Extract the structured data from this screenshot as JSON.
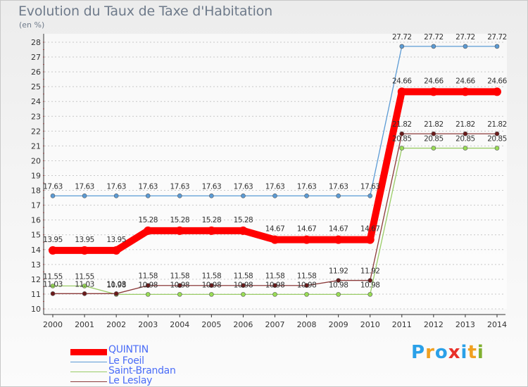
{
  "title": "Evolution du Taux de Taxe d'Habitation",
  "unit_label": "(en %)",
  "chart_data": {
    "type": "line",
    "title": "Evolution du Taux de Taxe d'Habitation",
    "ylabel": "(en %)",
    "xlabel": "",
    "x": [
      "2000",
      "2001",
      "2002",
      "2003",
      "2004",
      "2005",
      "2006",
      "2007",
      "2008",
      "2009",
      "2010",
      "2011",
      "2012",
      "2013",
      "2014"
    ],
    "ylim": [
      10,
      28
    ],
    "yticks": [
      "10",
      "11",
      "12",
      "13",
      "14",
      "15",
      "16",
      "17",
      "18",
      "19",
      "20",
      "21",
      "22",
      "23",
      "24",
      "25",
      "26",
      "27",
      "28"
    ],
    "grid": "horizontal dashed",
    "legend_position": "bottom-left",
    "series": [
      {
        "name": "QUINTIN",
        "color": "#ff0000",
        "values": [
          13.95,
          13.95,
          13.95,
          15.28,
          15.28,
          15.28,
          15.28,
          14.67,
          14.67,
          14.67,
          14.67,
          24.66,
          24.66,
          24.66,
          24.66
        ],
        "labels": [
          "13.95",
          "13.95",
          "13.95",
          "15.28",
          "15.28",
          "15.28",
          "15.28",
          "14.67",
          "14.67",
          "14.67",
          "14.67",
          "24.66",
          "24.66",
          "24.66",
          "24.66"
        ]
      },
      {
        "name": "Le Foeil",
        "color": "#5b9bd5",
        "values": [
          17.63,
          17.63,
          17.63,
          17.63,
          17.63,
          17.63,
          17.63,
          17.63,
          17.63,
          17.63,
          17.63,
          27.72,
          27.72,
          27.72,
          27.72
        ],
        "labels": [
          "17.63",
          "17.63",
          "17.63",
          "17.63",
          "17.63",
          "17.63",
          "17.63",
          "17.63",
          "17.63",
          "17.63",
          "17.63",
          "27.72",
          "27.72",
          "27.72",
          "27.72"
        ]
      },
      {
        "name": "Saint-Brandan",
        "color": "#99cc66",
        "values": [
          11.55,
          11.55,
          10.98,
          10.98,
          10.98,
          10.98,
          10.98,
          10.98,
          10.98,
          10.98,
          10.98,
          20.85,
          20.85,
          20.85,
          20.85
        ],
        "labels": [
          "11.55",
          "11.55",
          "10.98",
          "10.98",
          "10.98",
          "10.98",
          "10.98",
          "10.98",
          "10.98",
          "10.98",
          "10.98",
          "20.85",
          "20.85",
          "20.85",
          "20.85"
        ]
      },
      {
        "name": "Le Leslay",
        "color": "#8b3a3a",
        "values": [
          11.03,
          11.03,
          11.03,
          11.58,
          11.58,
          11.58,
          11.58,
          11.58,
          11.58,
          11.92,
          11.92,
          21.82,
          21.82,
          21.82,
          21.82
        ],
        "labels": [
          "11.03",
          "11.03",
          "11.03",
          "11.58",
          "11.58",
          "11.58",
          "11.58",
          "11.58",
          "11.58",
          "11.92",
          "11.92",
          "21.82",
          "21.82",
          "21.82",
          "21.82"
        ]
      }
    ]
  },
  "legend": {
    "items": [
      {
        "label": "QUINTIN",
        "color": "#ff0000",
        "label_color": "#4a6cf7"
      },
      {
        "label": "Le Foeil",
        "color": "#5b9bd5",
        "label_color": "#4a6cf7"
      },
      {
        "label": "Saint-Brandan",
        "color": "#99cc66",
        "label_color": "#4a6cf7"
      },
      {
        "label": "Le Leslay",
        "color": "#8b3a3a",
        "label_color": "#4a6cf7"
      }
    ]
  },
  "logo": {
    "letters": [
      "P",
      "r",
      "o",
      "x",
      "i",
      "t",
      "i"
    ],
    "colors": [
      "#2aa0e8",
      "#f0a020",
      "#2aa0e8",
      "#e8302a",
      "#2aa0e8",
      "#f0a020",
      "#80b030"
    ]
  }
}
